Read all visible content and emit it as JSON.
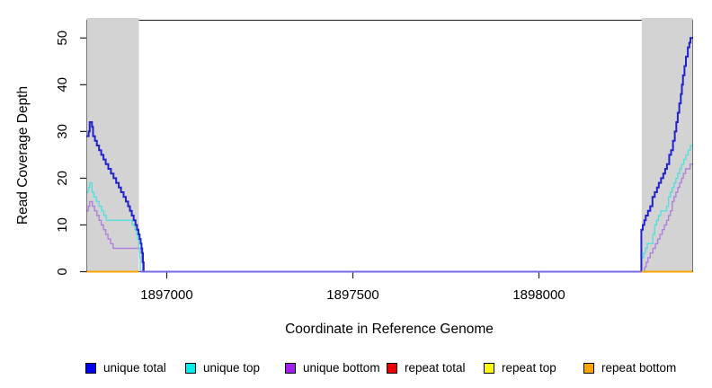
{
  "figure": {
    "xlabel": "Coordinate in Reference Genome",
    "ylabel": "Read Coverage Depth"
  },
  "chart_data": {
    "type": "line",
    "subtype": "step-after-coverage-plot",
    "title": "",
    "xlabel": "Coordinate in Reference Genome",
    "ylabel": "Read Coverage Depth",
    "xlim": [
      1896785,
      1898413
    ],
    "ylim": [
      0,
      53.8
    ],
    "x_ticks": [
      1897000,
      1897500,
      1898000
    ],
    "y_ticks": [
      0,
      10,
      20,
      30,
      40,
      50
    ],
    "grid": false,
    "plot_background": "#ffffff",
    "box_color": "#1a1a1a",
    "repeat_region_color": "#d3d3d3",
    "repeat_regions": [
      [
        1896785,
        1896925
      ],
      [
        1898276,
        1898413
      ]
    ],
    "legend": {
      "position": "bottom",
      "items": [
        {
          "label": "unique total",
          "color": "#0000ee"
        },
        {
          "label": "unique top",
          "color": "#00eeee"
        },
        {
          "label": "unique bottom",
          "color": "#a020f0"
        },
        {
          "label": "repeat total",
          "color": "#ee0000"
        },
        {
          "label": "repeat top",
          "color": "#ffff00"
        },
        {
          "label": "repeat bottom",
          "color": "#ffa500"
        }
      ]
    },
    "series": [
      {
        "name": "repeat total",
        "color": "#ee0000",
        "width": 2,
        "segments": [
          [
            [
              1896785,
              0
            ],
            [
              1896925,
              0
            ]
          ],
          [
            [
              1898276,
              0
            ],
            [
              1898413,
              0
            ]
          ]
        ]
      },
      {
        "name": "repeat top",
        "color": "#ffff00",
        "width": 2,
        "segments": [
          [
            [
              1896785,
              0
            ],
            [
              1896925,
              0
            ]
          ],
          [
            [
              1898276,
              0
            ],
            [
              1898413,
              0
            ]
          ]
        ]
      },
      {
        "name": "unique bottom",
        "color": "#b080dd",
        "width": 1.4,
        "segments": [
          [
            [
              1896785,
              13
            ],
            [
              1896789,
              14
            ],
            [
              1896793,
              15
            ],
            [
              1896800,
              14
            ],
            [
              1896806,
              13
            ],
            [
              1896812,
              12
            ],
            [
              1896818,
              11
            ],
            [
              1896824,
              10
            ],
            [
              1896830,
              9
            ],
            [
              1896836,
              8
            ],
            [
              1896842,
              7
            ],
            [
              1896849,
              6
            ],
            [
              1896856,
              5
            ],
            [
              1896928,
              5
            ],
            [
              1896931,
              4
            ],
            [
              1896933,
              2
            ],
            [
              1896935,
              0
            ]
          ],
          [
            [
              1898281,
              0
            ],
            [
              1898284,
              1
            ],
            [
              1898288,
              2
            ],
            [
              1898293,
              3
            ],
            [
              1898299,
              4
            ],
            [
              1898306,
              5
            ],
            [
              1898313,
              6
            ],
            [
              1898319,
              7
            ],
            [
              1898325,
              8
            ],
            [
              1898331,
              9
            ],
            [
              1898337,
              10
            ],
            [
              1898343,
              11
            ],
            [
              1898348,
              12
            ],
            [
              1898353,
              13
            ],
            [
              1898358,
              15
            ],
            [
              1898363,
              16
            ],
            [
              1898368,
              17
            ],
            [
              1898373,
              18
            ],
            [
              1898378,
              19
            ],
            [
              1898383,
              20
            ],
            [
              1898388,
              21
            ],
            [
              1898394,
              22
            ],
            [
              1898402,
              22
            ],
            [
              1898406,
              23
            ],
            [
              1898413,
              23
            ]
          ]
        ]
      },
      {
        "name": "unique top",
        "color": "#53e0dd",
        "width": 1.4,
        "segments": [
          [
            [
              1896785,
              17
            ],
            [
              1896789,
              18
            ],
            [
              1896793,
              19
            ],
            [
              1896799,
              17
            ],
            [
              1896804,
              16
            ],
            [
              1896811,
              15
            ],
            [
              1896818,
              14
            ],
            [
              1896825,
              13
            ],
            [
              1896831,
              12
            ],
            [
              1896838,
              11
            ],
            [
              1896900,
              11
            ],
            [
              1896907,
              10
            ],
            [
              1896914,
              9
            ],
            [
              1896919,
              8
            ],
            [
              1896922,
              7
            ],
            [
              1896925,
              5
            ],
            [
              1896927,
              4
            ],
            [
              1896928,
              3
            ],
            [
              1896929,
              0
            ]
          ],
          [
            [
              1898275,
              0
            ],
            [
              1898276,
              3
            ],
            [
              1898281,
              4
            ],
            [
              1898286,
              5
            ],
            [
              1898291,
              6
            ],
            [
              1898301,
              6
            ],
            [
              1898306,
              8
            ],
            [
              1898311,
              10
            ],
            [
              1898316,
              11
            ],
            [
              1898321,
              12
            ],
            [
              1898327,
              13
            ],
            [
              1898338,
              13
            ],
            [
              1898343,
              14
            ],
            [
              1898348,
              16
            ],
            [
              1898353,
              17
            ],
            [
              1898358,
              18
            ],
            [
              1898363,
              19
            ],
            [
              1898368,
              20
            ],
            [
              1898373,
              21
            ],
            [
              1898378,
              22
            ],
            [
              1898383,
              23
            ],
            [
              1898389,
              24
            ],
            [
              1898395,
              25
            ],
            [
              1898401,
              26
            ],
            [
              1898407,
              27
            ],
            [
              1898413,
              27
            ]
          ]
        ]
      },
      {
        "name": "unique total",
        "color": "#2222cc",
        "width": 2,
        "segments": [
          [
            [
              1896785,
              29
            ],
            [
              1896790,
              30
            ],
            [
              1896793,
              32
            ],
            [
              1896799,
              31
            ],
            [
              1896802,
              29
            ],
            [
              1896807,
              28
            ],
            [
              1896812,
              27
            ],
            [
              1896818,
              26
            ],
            [
              1896824,
              25
            ],
            [
              1896830,
              24
            ],
            [
              1896836,
              23
            ],
            [
              1896843,
              22
            ],
            [
              1896850,
              21
            ],
            [
              1896857,
              20
            ],
            [
              1896864,
              19
            ],
            [
              1896871,
              18
            ],
            [
              1896877,
              17
            ],
            [
              1896884,
              16
            ],
            [
              1896890,
              15
            ],
            [
              1896896,
              14
            ],
            [
              1896901,
              13
            ],
            [
              1896906,
              12
            ],
            [
              1896911,
              11
            ],
            [
              1896916,
              10
            ],
            [
              1896920,
              9
            ],
            [
              1896924,
              8
            ],
            [
              1896927,
              7
            ],
            [
              1896930,
              6
            ],
            [
              1896932,
              5
            ],
            [
              1896934,
              4
            ],
            [
              1896936,
              2
            ],
            [
              1896938,
              0
            ]
          ],
          [
            [
              1898274,
              0
            ],
            [
              1898275,
              9
            ],
            [
              1898279,
              10
            ],
            [
              1898283,
              11
            ],
            [
              1898287,
              12
            ],
            [
              1898293,
              13
            ],
            [
              1898299,
              14
            ],
            [
              1898305,
              16
            ],
            [
              1898311,
              17
            ],
            [
              1898317,
              18
            ],
            [
              1898322,
              19
            ],
            [
              1898328,
              20
            ],
            [
              1898334,
              21
            ],
            [
              1898339,
              22
            ],
            [
              1898344,
              23
            ],
            [
              1898350,
              25
            ],
            [
              1898355,
              26
            ],
            [
              1898360,
              28
            ],
            [
              1898365,
              30
            ],
            [
              1898369,
              32
            ],
            [
              1898373,
              34
            ],
            [
              1898377,
              36
            ],
            [
              1898381,
              38
            ],
            [
              1898384,
              40
            ],
            [
              1898387,
              42
            ],
            [
              1898391,
              44
            ],
            [
              1898395,
              46
            ],
            [
              1898400,
              48
            ],
            [
              1898404,
              49
            ],
            [
              1898407,
              50
            ],
            [
              1898413,
              50
            ]
          ]
        ]
      },
      {
        "name": "zero coverage baseline (overlapping unique lines)",
        "color": "#7668e2",
        "width": 2,
        "segments": [
          [
            [
              1896929,
              0
            ],
            [
              1898277,
              0
            ]
          ]
        ]
      },
      {
        "name": "repeat bottom",
        "color": "#ffa500",
        "width": 2,
        "segments": [
          [
            [
              1896785,
              0
            ],
            [
              1896925,
              0
            ]
          ],
          [
            [
              1898276,
              0
            ],
            [
              1898413,
              0
            ]
          ]
        ]
      }
    ]
  }
}
